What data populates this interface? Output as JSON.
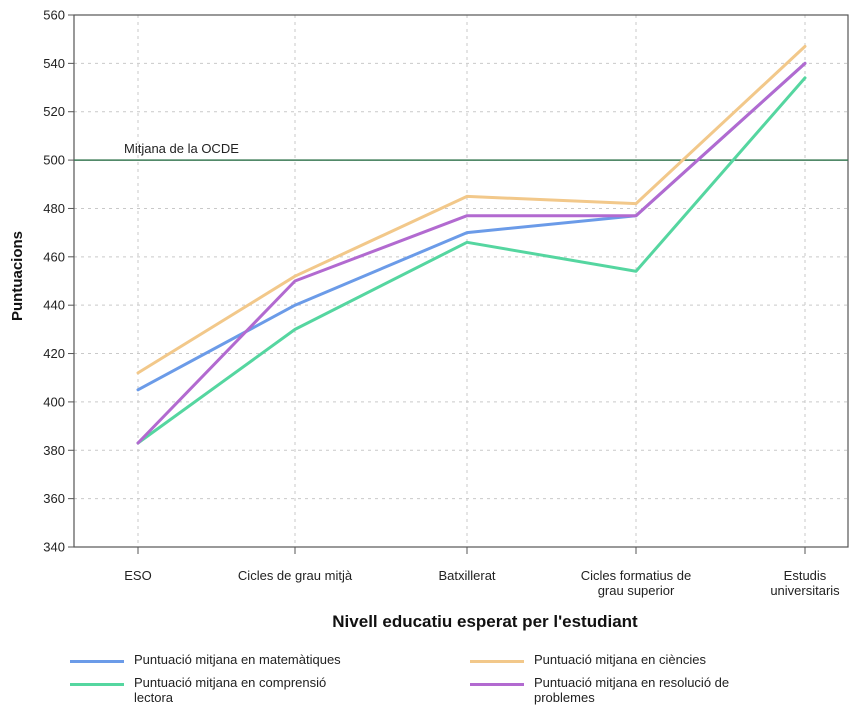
{
  "chart_data": {
    "type": "line",
    "title": "",
    "xlabel": "Nivell educatiu esperat per l'estudiant",
    "ylabel": "Puntuacions",
    "ylim": [
      340,
      560
    ],
    "yticks": [
      340,
      360,
      380,
      400,
      420,
      440,
      460,
      480,
      500,
      520,
      540,
      560
    ],
    "grid": true,
    "legend_position": "bottom",
    "categories": [
      [
        "ESO"
      ],
      [
        "Cicles de grau mitjà"
      ],
      [
        "Batxillerat"
      ],
      [
        "Cicles formatius de",
        "grau superior"
      ],
      [
        "Estudis",
        "universitaris"
      ]
    ],
    "reference_line": {
      "value": 500,
      "label": "Mitjana de la OCDE",
      "color": "#3a7a55"
    },
    "series": [
      {
        "name": "Puntuació mitjana en matemàtiques",
        "color": "#6b9be8",
        "values": [
          405,
          440,
          470,
          477,
          540
        ]
      },
      {
        "name": "Puntuació mitjana en ciències",
        "color": "#f2c88a",
        "values": [
          412,
          452,
          485,
          482,
          547
        ]
      },
      {
        "name": "Puntuació mitjana en comprensió lectora",
        "color": "#55d6a0",
        "values": [
          383,
          430,
          466,
          454,
          534
        ]
      },
      {
        "name": "Puntuació mitjana en resolució de problemes",
        "color": "#b26ad0",
        "values": [
          383,
          450,
          477,
          477,
          540
        ]
      }
    ]
  },
  "legend": {
    "items": [
      {
        "series": 0,
        "label_lines": [
          "Puntuació mitjana en matemàtiques"
        ]
      },
      {
        "series": 1,
        "label_lines": [
          "Puntuació mitjana en ciències"
        ]
      },
      {
        "series": 2,
        "label_lines": [
          "Puntuació mitjana en comprensió",
          "lectora"
        ]
      },
      {
        "series": 3,
        "label_lines": [
          "Puntuació mitjana en resolució de",
          "problemes"
        ]
      }
    ]
  }
}
